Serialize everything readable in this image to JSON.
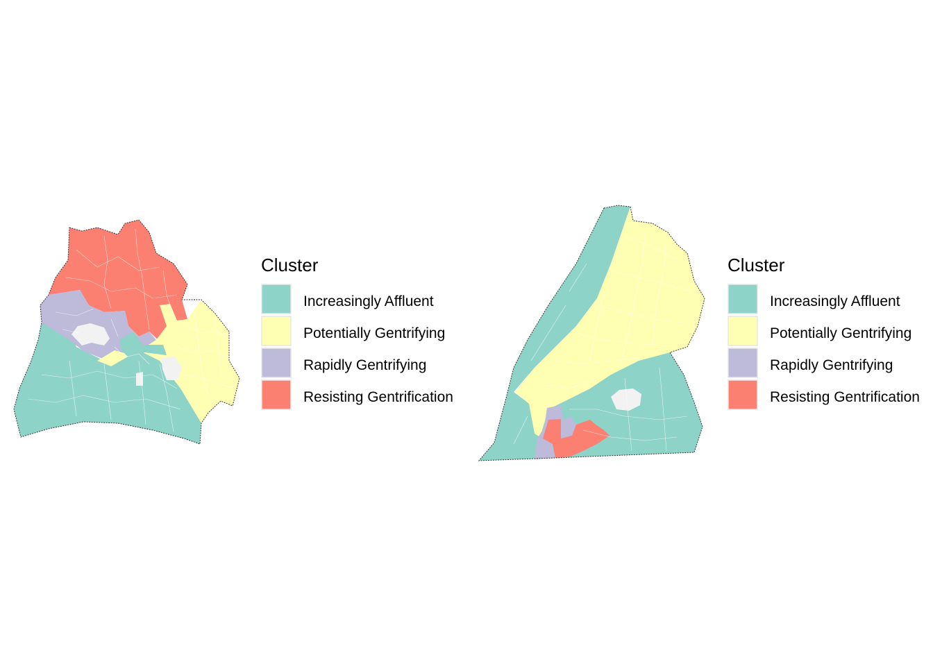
{
  "colors": {
    "increasingly_affluent": "#8ED3C7",
    "potentially_gentrifying": "#FFFFB3",
    "rapidly_gentrifying": "#BEBADA",
    "resisting_gentrification": "#FB8072",
    "no_data": "#F2F2F2"
  },
  "maps": [
    {
      "legend": {
        "title": "Cluster",
        "items": [
          {
            "label": "Increasingly Affluent",
            "color": "#8ED3C7"
          },
          {
            "label": "Potentially Gentrifying",
            "color": "#FFFFB3"
          },
          {
            "label": "Rapidly Gentrifying",
            "color": "#BEBADA"
          },
          {
            "label": "Resisting Gentrification",
            "color": "#FB8072"
          }
        ]
      }
    },
    {
      "legend": {
        "title": "Cluster",
        "items": [
          {
            "label": "Increasingly Affluent",
            "color": "#8ED3C7"
          },
          {
            "label": "Potentially Gentrifying",
            "color": "#FFFFB3"
          },
          {
            "label": "Rapidly Gentrifying",
            "color": "#BEBADA"
          },
          {
            "label": "Resisting Gentrification",
            "color": "#FB8072"
          }
        ]
      }
    }
  ]
}
